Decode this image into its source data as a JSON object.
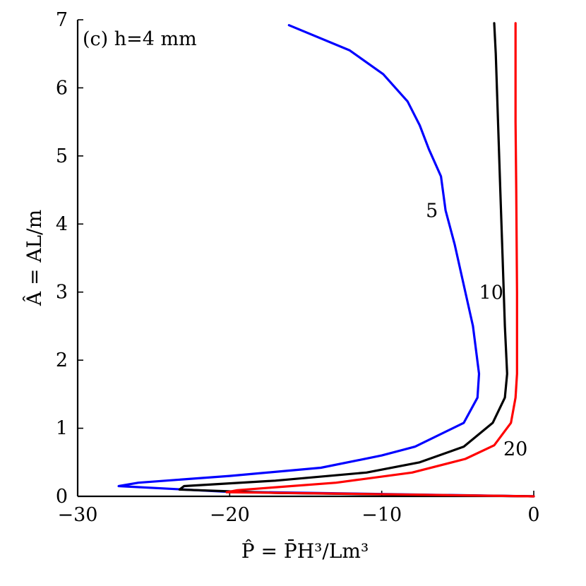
{
  "chart_data": {
    "type": "line",
    "title": "(c) h=4 mm",
    "xlabel": "P̂ = P̄H³/Lm³",
    "ylabel": "Â = AL/m",
    "xlim": [
      -30,
      0
    ],
    "ylim": [
      0,
      7
    ],
    "x_ticks": [
      -30,
      -20,
      -10,
      0
    ],
    "x_tick_labels": [
      "−30",
      "−20",
      "−10",
      "0"
    ],
    "y_ticks": [
      0,
      1,
      2,
      3,
      4,
      5,
      6,
      7
    ],
    "y_tick_labels": [
      "0",
      "1",
      "2",
      "3",
      "4",
      "5",
      "6",
      "7"
    ],
    "grid": false,
    "legend": "none",
    "series": [
      {
        "label": "5",
        "color": "#0000ff",
        "points": [
          [
            0,
            0.0
          ],
          [
            -20.4,
            0.07
          ],
          [
            -27.3,
            0.15
          ],
          [
            -26.0,
            0.2
          ],
          [
            -20.0,
            0.3
          ],
          [
            -14.0,
            0.42
          ],
          [
            -10.0,
            0.6
          ],
          [
            -7.8,
            0.73
          ],
          [
            -4.6,
            1.08
          ],
          [
            -3.7,
            1.45
          ],
          [
            -3.6,
            1.8
          ],
          [
            -4.0,
            2.5
          ],
          [
            -4.5,
            3.0
          ],
          [
            -5.2,
            3.7
          ],
          [
            -5.8,
            4.2
          ],
          [
            -6.1,
            4.7
          ],
          [
            -6.9,
            5.1
          ],
          [
            -7.5,
            5.45
          ],
          [
            -8.3,
            5.8
          ],
          [
            -9.9,
            6.2
          ],
          [
            -12.1,
            6.55
          ],
          [
            -16.1,
            6.92
          ]
        ]
      },
      {
        "label": "10",
        "color": "#000000",
        "points": [
          [
            0,
            0.0
          ],
          [
            -17.0,
            0.05
          ],
          [
            -23.3,
            0.1
          ],
          [
            -23.0,
            0.15
          ],
          [
            -17.0,
            0.23
          ],
          [
            -11.0,
            0.35
          ],
          [
            -7.5,
            0.5
          ],
          [
            -4.6,
            0.73
          ],
          [
            -2.7,
            1.08
          ],
          [
            -1.9,
            1.45
          ],
          [
            -1.75,
            1.8
          ],
          [
            -1.9,
            2.5
          ],
          [
            -2.05,
            3.5
          ],
          [
            -2.2,
            4.5
          ],
          [
            -2.35,
            5.5
          ],
          [
            -2.5,
            6.5
          ],
          [
            -2.6,
            6.95
          ]
        ]
      },
      {
        "label": "20",
        "color": "#ff0000",
        "points": [
          [
            0,
            0.0
          ],
          [
            -13.0,
            0.04
          ],
          [
            -20.2,
            0.06
          ],
          [
            -19.5,
            0.09
          ],
          [
            -13.0,
            0.2
          ],
          [
            -8.0,
            0.35
          ],
          [
            -4.5,
            0.55
          ],
          [
            -2.6,
            0.75
          ],
          [
            -1.5,
            1.08
          ],
          [
            -1.2,
            1.45
          ],
          [
            -1.1,
            1.8
          ],
          [
            -1.1,
            3.0
          ],
          [
            -1.15,
            4.5
          ],
          [
            -1.2,
            5.5
          ],
          [
            -1.2,
            6.95
          ]
        ]
      }
    ],
    "annotations": [
      {
        "text": "5",
        "x": -6.7,
        "y": 4.1
      },
      {
        "text": "10",
        "x": -2.8,
        "y": 2.9
      },
      {
        "text": "20",
        "x": -1.2,
        "y": 0.6
      }
    ]
  }
}
